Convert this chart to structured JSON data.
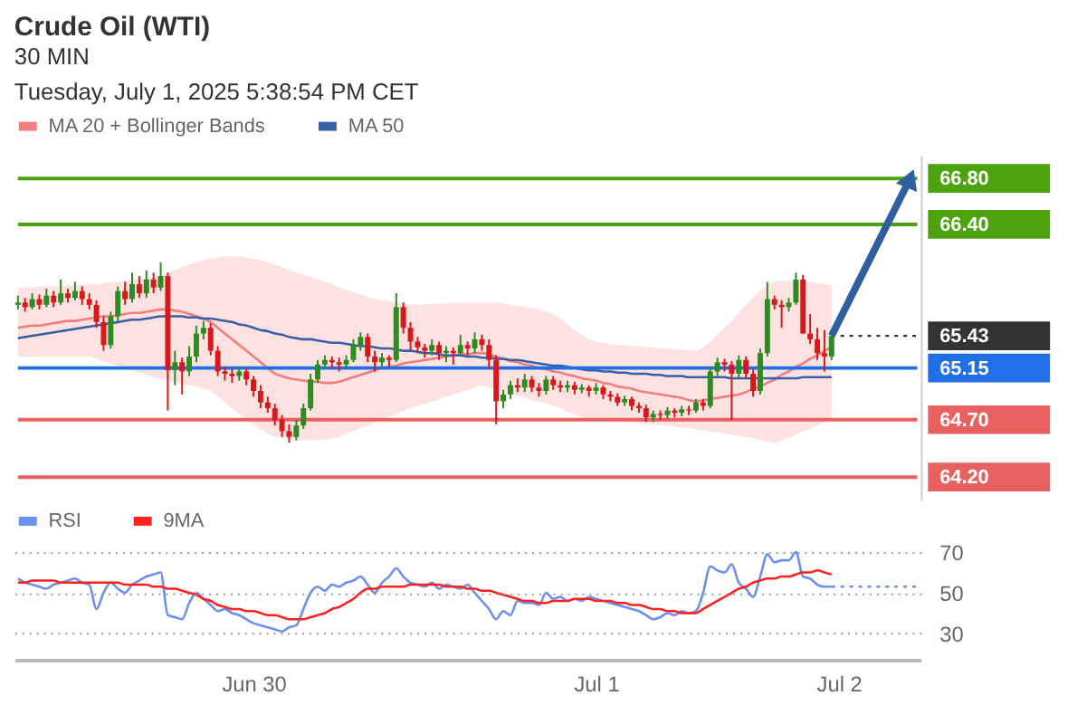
{
  "chart_data": [
    {
      "type": "candlestick",
      "title": "Crude Oil (WTI)",
      "subtitle": "30 MIN",
      "annotations": [
        "Tuesday, July 1, 2025 5:38:54 PM CET"
      ],
      "categories": [
        null,
        null,
        null,
        null,
        null,
        null,
        null,
        null,
        null,
        null,
        null,
        null,
        null,
        null,
        null,
        null,
        null,
        null,
        null,
        null,
        null,
        null,
        null,
        null,
        null,
        null,
        null,
        null,
        null,
        null,
        null,
        null,
        null,
        null,
        null,
        null,
        null,
        null,
        null,
        null,
        null,
        null,
        null,
        null,
        null,
        null,
        null,
        null,
        null,
        null,
        null,
        null,
        null,
        null,
        null,
        null,
        null,
        null,
        null,
        null,
        null,
        null,
        null,
        null,
        null,
        null,
        null,
        null,
        null,
        null,
        null,
        null,
        null,
        null,
        null,
        null,
        null,
        null,
        null,
        null,
        null,
        null,
        null,
        null,
        null,
        null,
        null,
        null,
        null,
        null,
        null,
        null,
        null,
        null,
        null,
        null,
        null,
        null,
        null,
        null,
        null,
        null,
        null,
        null,
        null,
        null,
        null,
        null,
        null,
        null,
        null,
        null,
        null,
        null,
        null,
        null,
        null,
        null,
        null,
        null,
        null,
        null,
        null,
        null,
        null,
        null,
        null
      ],
      "ohlc": [
        [
          65.7,
          65.78,
          65.66,
          65.72
        ],
        [
          65.72,
          65.76,
          65.64,
          65.68
        ],
        [
          65.68,
          65.8,
          65.66,
          65.75
        ],
        [
          65.75,
          65.79,
          65.66,
          65.7
        ],
        [
          65.7,
          65.84,
          65.68,
          65.78
        ],
        [
          65.78,
          65.82,
          65.68,
          65.72
        ],
        [
          65.72,
          65.92,
          65.7,
          65.8
        ],
        [
          65.8,
          65.84,
          65.72,
          65.76
        ],
        [
          65.76,
          65.9,
          65.74,
          65.82
        ],
        [
          65.82,
          65.86,
          65.7,
          65.75
        ],
        [
          65.75,
          65.8,
          65.66,
          65.7
        ],
        [
          65.7,
          65.74,
          65.5,
          65.55
        ],
        [
          65.55,
          65.6,
          65.3,
          65.35
        ],
        [
          65.35,
          65.64,
          65.32,
          65.6
        ],
        [
          65.6,
          65.86,
          65.56,
          65.82
        ],
        [
          65.82,
          65.9,
          65.7,
          65.75
        ],
        [
          65.75,
          65.98,
          65.72,
          65.88
        ],
        [
          65.88,
          65.95,
          65.76,
          65.8
        ],
        [
          65.8,
          66.0,
          65.76,
          65.92
        ],
        [
          65.92,
          65.98,
          65.8,
          65.85
        ],
        [
          65.85,
          66.07,
          65.82,
          65.95
        ],
        [
          65.95,
          65.98,
          64.78,
          65.13
        ],
        [
          65.13,
          65.3,
          65.0,
          65.2
        ],
        [
          65.2,
          65.24,
          64.92,
          65.12
        ],
        [
          65.12,
          65.34,
          65.08,
          65.25
        ],
        [
          65.25,
          65.52,
          65.2,
          65.45
        ],
        [
          65.45,
          65.56,
          65.4,
          65.5
        ],
        [
          65.5,
          65.54,
          65.26,
          65.3
        ],
        [
          65.3,
          65.34,
          65.08,
          65.12
        ],
        [
          65.12,
          65.16,
          65.04,
          65.1
        ],
        [
          65.1,
          65.14,
          65.02,
          65.08
        ],
        [
          65.08,
          65.16,
          65.04,
          65.12
        ],
        [
          65.12,
          65.15,
          65.0,
          65.05
        ],
        [
          65.05,
          65.08,
          64.9,
          64.95
        ],
        [
          64.95,
          65.0,
          64.8,
          64.85
        ],
        [
          64.85,
          64.9,
          64.76,
          64.8
        ],
        [
          64.8,
          64.84,
          64.65,
          64.7
        ],
        [
          64.7,
          64.74,
          64.55,
          64.6
        ],
        [
          64.6,
          64.66,
          64.5,
          64.55
        ],
        [
          64.55,
          64.7,
          64.52,
          64.65
        ],
        [
          64.65,
          64.84,
          64.62,
          64.8
        ],
        [
          64.8,
          65.1,
          64.78,
          65.05
        ],
        [
          65.05,
          65.22,
          65.02,
          65.18
        ],
        [
          65.18,
          65.26,
          65.14,
          65.22
        ],
        [
          65.22,
          65.25,
          65.15,
          65.2
        ],
        [
          65.2,
          65.24,
          65.12,
          65.18
        ],
        [
          65.18,
          65.26,
          65.14,
          65.22
        ],
        [
          65.22,
          65.4,
          65.2,
          65.35
        ],
        [
          65.35,
          65.46,
          65.3,
          65.42
        ],
        [
          65.42,
          65.45,
          65.2,
          65.25
        ],
        [
          65.25,
          65.3,
          65.12,
          65.2
        ],
        [
          65.2,
          65.28,
          65.16,
          65.24
        ],
        [
          65.24,
          65.26,
          65.16,
          65.22
        ],
        [
          65.22,
          65.8,
          65.2,
          65.68
        ],
        [
          65.68,
          65.72,
          65.45,
          65.5
        ],
        [
          65.5,
          65.55,
          65.3,
          65.38
        ],
        [
          65.38,
          65.42,
          65.28,
          65.33
        ],
        [
          65.33,
          65.36,
          65.24,
          65.3
        ],
        [
          65.3,
          65.4,
          65.26,
          65.35
        ],
        [
          65.35,
          65.38,
          65.22,
          65.28
        ],
        [
          65.28,
          65.34,
          65.2,
          65.3
        ],
        [
          65.3,
          65.33,
          65.18,
          65.28
        ],
        [
          65.28,
          65.44,
          65.26,
          65.35
        ],
        [
          65.35,
          65.38,
          65.26,
          65.32
        ],
        [
          65.32,
          65.46,
          65.28,
          65.4
        ],
        [
          65.4,
          65.44,
          65.3,
          65.35
        ],
        [
          65.35,
          65.4,
          65.14,
          65.22
        ],
        [
          65.22,
          65.26,
          64.66,
          64.86
        ],
        [
          64.86,
          64.96,
          64.8,
          64.92
        ],
        [
          64.92,
          65.04,
          64.88,
          65.0
        ],
        [
          65.0,
          65.06,
          64.94,
          64.98
        ],
        [
          64.98,
          65.1,
          64.94,
          65.05
        ],
        [
          65.05,
          65.08,
          64.94,
          64.98
        ],
        [
          64.98,
          65.02,
          64.9,
          64.95
        ],
        [
          64.95,
          65.08,
          64.92,
          65.05
        ],
        [
          65.05,
          65.08,
          64.96,
          65.0
        ],
        [
          65.0,
          65.04,
          64.94,
          64.98
        ],
        [
          64.98,
          65.04,
          64.94,
          65.0
        ],
        [
          65.0,
          65.03,
          64.92,
          64.96
        ],
        [
          64.96,
          65.01,
          64.93,
          64.98
        ],
        [
          64.98,
          65.0,
          64.9,
          64.95
        ],
        [
          64.95,
          65.02,
          64.92,
          64.98
        ],
        [
          64.98,
          65.0,
          64.88,
          64.92
        ],
        [
          64.92,
          64.95,
          64.86,
          64.9
        ],
        [
          64.9,
          64.93,
          64.82,
          64.85
        ],
        [
          64.85,
          64.91,
          64.82,
          64.88
        ],
        [
          64.88,
          64.9,
          64.78,
          64.82
        ],
        [
          64.82,
          64.85,
          64.76,
          64.8
        ],
        [
          64.8,
          64.83,
          64.68,
          64.72
        ],
        [
          64.72,
          64.78,
          64.68,
          64.75
        ],
        [
          64.75,
          64.78,
          64.7,
          64.74
        ],
        [
          64.74,
          64.81,
          64.71,
          64.78
        ],
        [
          64.78,
          64.8,
          64.72,
          64.76
        ],
        [
          64.76,
          64.82,
          64.73,
          64.79
        ],
        [
          64.79,
          64.82,
          64.74,
          64.78
        ],
        [
          64.78,
          64.88,
          64.76,
          64.85
        ],
        [
          64.85,
          64.88,
          64.78,
          64.82
        ],
        [
          64.82,
          65.16,
          64.8,
          65.12
        ],
        [
          65.12,
          65.24,
          65.08,
          65.2
        ],
        [
          65.2,
          65.23,
          65.12,
          65.18
        ],
        [
          65.18,
          65.21,
          64.7,
          65.1
        ],
        [
          65.1,
          65.26,
          65.06,
          65.22
        ],
        [
          65.22,
          65.25,
          65.06,
          65.1
        ],
        [
          65.1,
          65.14,
          64.9,
          64.95
        ],
        [
          64.95,
          65.32,
          64.92,
          65.28
        ],
        [
          65.28,
          65.9,
          65.25,
          65.75
        ],
        [
          65.75,
          65.78,
          65.66,
          65.7
        ],
        [
          65.7,
          65.74,
          65.5,
          65.68
        ],
        [
          65.68,
          65.76,
          65.64,
          65.72
        ],
        [
          65.72,
          65.98,
          65.7,
          65.92
        ],
        [
          65.92,
          65.96,
          65.45,
          65.45
        ],
        [
          65.45,
          65.62,
          65.36,
          65.4
        ],
        [
          65.4,
          65.5,
          65.22,
          65.28
        ],
        [
          65.28,
          65.48,
          65.12,
          65.25
        ],
        [
          65.25,
          65.46,
          65.22,
          65.43
        ],
        null,
        null,
        null,
        null,
        null,
        null,
        null,
        null,
        null,
        null,
        null,
        null
      ],
      "series": [
        {
          "name": "MA 20 + Bollinger Bands",
          "type": "line",
          "color": "#f47c7c",
          "values": [
            65.5,
            65.51,
            65.52,
            65.52,
            65.53,
            65.54,
            65.55,
            65.56,
            65.56,
            65.57,
            65.58,
            65.59,
            65.6,
            65.6,
            65.61,
            65.62,
            65.63,
            65.63,
            65.64,
            65.65,
            65.66,
            65.66,
            65.65,
            65.64,
            65.62,
            65.6,
            65.58,
            65.55,
            65.5,
            65.45,
            65.4,
            65.35,
            65.3,
            65.25,
            65.2,
            65.15,
            65.1,
            65.08,
            65.06,
            65.05,
            65.04,
            65.03,
            65.03,
            65.02,
            65.02,
            65.03,
            65.05,
            65.07,
            65.09,
            65.11,
            65.13,
            65.15,
            65.16,
            65.17,
            65.19,
            65.2,
            65.21,
            65.22,
            65.23,
            65.24,
            65.25,
            65.26,
            65.27,
            65.27,
            65.28,
            65.28,
            65.27,
            65.25,
            65.23,
            65.21,
            65.2,
            65.18,
            65.17,
            65.15,
            65.14,
            65.12,
            65.11,
            65.09,
            65.08,
            65.06,
            65.05,
            65.04,
            65.02,
            65.01,
            64.99,
            64.98,
            64.97,
            64.95,
            64.94,
            64.93,
            64.92,
            64.91,
            64.9,
            64.89,
            64.87,
            64.86,
            64.87,
            64.88,
            64.89,
            64.9,
            64.91,
            64.92,
            64.94,
            64.97,
            64.99,
            65.02,
            65.05,
            65.09,
            65.12,
            65.16,
            65.19,
            65.23,
            65.26,
            65.3,
            65.33,
            null,
            null,
            null,
            null,
            null,
            null,
            null,
            null,
            null,
            null,
            null,
            null
          ],
          "upper": [
            65.85,
            65.85,
            65.85,
            65.86,
            65.86,
            65.86,
            65.86,
            65.87,
            65.87,
            65.87,
            65.88,
            65.88,
            65.89,
            65.9,
            65.9,
            65.91,
            65.92,
            65.93,
            65.93,
            65.94,
            65.95,
            65.98,
            66.0,
            66.03,
            66.05,
            66.07,
            66.09,
            66.1,
            66.11,
            66.12,
            66.12,
            66.12,
            66.11,
            66.1,
            66.09,
            66.07,
            66.05,
            66.03,
            66.0,
            65.98,
            65.96,
            65.94,
            65.92,
            65.9,
            65.88,
            65.85,
            65.83,
            65.81,
            65.79,
            65.77,
            65.75,
            65.74,
            65.73,
            65.72,
            65.71,
            65.7,
            65.7,
            65.7,
            65.71,
            65.71,
            65.71,
            65.72,
            65.72,
            65.72,
            65.72,
            65.72,
            65.72,
            65.72,
            65.71,
            65.7,
            65.69,
            65.68,
            65.67,
            65.66,
            65.64,
            65.62,
            65.58,
            65.53,
            65.48,
            65.44,
            65.4,
            65.38,
            65.37,
            65.36,
            65.35,
            65.35,
            65.34,
            65.34,
            65.33,
            65.33,
            65.32,
            65.32,
            65.31,
            65.31,
            65.3,
            65.3,
            65.33,
            65.38,
            65.44,
            65.5,
            65.56,
            65.63,
            65.7,
            65.76,
            65.82,
            65.87,
            65.9,
            65.91,
            65.91,
            65.91,
            65.9,
            65.9,
            65.89,
            65.88,
            65.87,
            null,
            null,
            null,
            null,
            null,
            null,
            null,
            null,
            null,
            null,
            null,
            null
          ],
          "lower": [
            65.25,
            65.25,
            65.25,
            65.25,
            65.25,
            65.25,
            65.25,
            65.25,
            65.25,
            65.25,
            65.25,
            65.23,
            65.21,
            65.19,
            65.17,
            65.15,
            65.13,
            65.11,
            65.09,
            65.07,
            65.05,
            65.04,
            65.03,
            65.01,
            65.0,
            64.99,
            64.97,
            64.95,
            64.9,
            64.85,
            64.8,
            64.75,
            64.7,
            64.66,
            64.62,
            64.58,
            64.55,
            64.54,
            64.53,
            64.52,
            64.52,
            64.52,
            64.52,
            64.53,
            64.54,
            64.55,
            64.58,
            64.6,
            64.63,
            64.65,
            64.68,
            64.7,
            64.73,
            64.75,
            64.78,
            64.8,
            64.82,
            64.84,
            64.86,
            64.88,
            64.9,
            64.92,
            64.94,
            64.96,
            64.98,
            65.0,
            64.98,
            64.96,
            64.94,
            64.92,
            64.91,
            64.89,
            64.87,
            64.86,
            64.84,
            64.82,
            64.8,
            64.77,
            64.75,
            64.72,
            64.7,
            64.7,
            64.69,
            64.69,
            64.68,
            64.68,
            64.67,
            64.67,
            64.66,
            64.66,
            64.65,
            64.65,
            64.64,
            64.63,
            64.63,
            64.62,
            64.61,
            64.6,
            64.59,
            64.58,
            64.57,
            64.56,
            64.55,
            64.54,
            64.52,
            64.51,
            64.5,
            64.52,
            64.54,
            64.57,
            64.6,
            64.62,
            64.65,
            64.68,
            64.7,
            null,
            null,
            null,
            null,
            null,
            null,
            null,
            null,
            null,
            null,
            null,
            null
          ]
        },
        {
          "name": "MA 50",
          "type": "line",
          "color": "#3a5ea8",
          "values": [
            65.41,
            65.42,
            65.43,
            65.44,
            65.45,
            65.46,
            65.47,
            65.48,
            65.49,
            65.5,
            65.51,
            65.52,
            65.53,
            65.54,
            65.55,
            65.56,
            65.57,
            65.57,
            65.58,
            65.59,
            65.6,
            65.6,
            65.6,
            65.6,
            65.59,
            65.59,
            65.58,
            65.58,
            65.57,
            65.56,
            65.55,
            65.53,
            65.52,
            65.5,
            65.48,
            65.47,
            65.45,
            65.44,
            65.42,
            65.41,
            65.4,
            65.4,
            65.39,
            65.38,
            65.37,
            65.37,
            65.36,
            65.35,
            65.34,
            65.34,
            65.33,
            65.32,
            65.32,
            65.31,
            65.3,
            65.3,
            65.29,
            65.28,
            65.28,
            65.27,
            65.26,
            65.26,
            65.26,
            65.25,
            65.25,
            65.24,
            65.24,
            65.23,
            65.23,
            65.22,
            65.22,
            65.21,
            65.2,
            65.19,
            65.18,
            65.17,
            65.17,
            65.16,
            65.15,
            65.14,
            65.13,
            65.13,
            65.12,
            65.12,
            65.11,
            65.11,
            65.1,
            65.1,
            65.1,
            65.09,
            65.09,
            65.08,
            65.08,
            65.08,
            65.07,
            65.07,
            65.07,
            65.07,
            65.07,
            65.07,
            65.06,
            65.06,
            65.06,
            65.06,
            65.06,
            65.06,
            65.06,
            65.06,
            65.06,
            65.06,
            65.07,
            65.07,
            65.07,
            65.07,
            65.07,
            null,
            null,
            null,
            null,
            null,
            null,
            null,
            null,
            null,
            null,
            null,
            null
          ]
        }
      ],
      "ylim": [
        64.0,
        67.0
      ],
      "yticks": [
        {
          "value": 64.2,
          "label": "64.20"
        },
        {
          "value": 64.7,
          "label": "64.70"
        },
        {
          "value": 65.15,
          "label": "65.15"
        },
        {
          "value": 65.43,
          "label": "65.43"
        },
        {
          "value": 66.4,
          "label": "66.40"
        },
        {
          "value": 66.8,
          "label": "66.80"
        }
      ],
      "tick_labels": "y",
      "legend": "top left",
      "line_style": "solid",
      "marker": "none",
      "ref_lines": [
        {
          "axis": "y",
          "value": 66.8,
          "color": "#4ca30d",
          "line_style": "solid"
        },
        {
          "axis": "y",
          "value": 66.4,
          "color": "#4ca30d",
          "line_style": "solid"
        },
        {
          "axis": "y",
          "value": 65.43,
          "color": "#333333",
          "line_style": "dotted"
        },
        {
          "axis": "y",
          "value": 65.15,
          "color": "#1f6fe8",
          "line_style": "solid"
        },
        {
          "axis": "y",
          "value": 64.7,
          "color": "#e8605f",
          "line_style": "solid"
        },
        {
          "axis": "y",
          "value": 64.2,
          "color": "#e8605f",
          "line_style": "solid"
        }
      ]
    },
    {
      "type": "line",
      "categories": [
        null,
        null,
        null,
        null,
        null,
        null,
        null,
        null,
        null,
        null,
        null,
        null,
        null,
        null,
        null,
        null,
        null,
        null,
        null,
        null,
        null,
        null,
        null,
        null,
        null,
        null,
        null,
        null,
        null,
        null,
        null,
        null,
        null,
        "Jun 30",
        null,
        null,
        null,
        null,
        null,
        null,
        null,
        null,
        null,
        null,
        null,
        null,
        null,
        null,
        null,
        null,
        null,
        null,
        null,
        null,
        null,
        null,
        null,
        null,
        null,
        null,
        null,
        null,
        null,
        null,
        null,
        null,
        null,
        null,
        null,
        null,
        null,
        null,
        null,
        null,
        null,
        null,
        null,
        null,
        null,
        null,
        null,
        "Jul 1",
        null,
        null,
        null,
        null,
        null,
        null,
        null,
        null,
        null,
        null,
        null,
        null,
        null,
        null,
        null,
        null,
        null,
        null,
        null,
        null,
        null,
        null,
        null,
        null,
        null,
        null,
        null,
        null,
        null,
        null,
        null,
        null,
        null,
        "Jul 2",
        null,
        null,
        null,
        null,
        null,
        null,
        null,
        null,
        null,
        null,
        null
      ],
      "series": [
        {
          "name": "RSI",
          "color": "#6b8ff0",
          "values": [
            57,
            55,
            54,
            53,
            52,
            54,
            55,
            56,
            57,
            55,
            54,
            42,
            50,
            55,
            52,
            50,
            54,
            56,
            58,
            59,
            60,
            39,
            38,
            37,
            45,
            50,
            47,
            44,
            41,
            42,
            40,
            39,
            37,
            35,
            34,
            33,
            32,
            31,
            33,
            34,
            42,
            50,
            53,
            51,
            54,
            53,
            55,
            56,
            58,
            54,
            50,
            55,
            58,
            62,
            58,
            55,
            54,
            53,
            55,
            52,
            54,
            53,
            52,
            54,
            50,
            46,
            42,
            37,
            41,
            39,
            46,
            45,
            45,
            44,
            50,
            47,
            48,
            46,
            47,
            46,
            48,
            47,
            46,
            45,
            44,
            43,
            42,
            41,
            39,
            37,
            38,
            40,
            39,
            41,
            40,
            41,
            50,
            63,
            61,
            60,
            64,
            55,
            52,
            48,
            58,
            69,
            65,
            66,
            66,
            70,
            58,
            57,
            54,
            53,
            53,
            null,
            null,
            null,
            null,
            null,
            null,
            null,
            null,
            null,
            null,
            null,
            null
          ]
        },
        {
          "name": "9MA",
          "color": "#ff2020",
          "values": [
            55,
            55,
            56,
            56,
            56,
            56,
            55,
            55,
            55,
            55,
            55,
            55,
            55,
            55,
            55,
            54,
            54,
            54,
            54,
            53,
            53,
            52,
            52,
            51,
            50,
            49,
            47,
            46,
            44,
            43,
            42,
            42,
            41,
            41,
            40,
            39,
            39,
            38,
            37,
            37,
            37,
            38,
            39,
            40,
            42,
            43,
            45,
            47,
            50,
            52,
            52,
            53,
            53,
            53,
            53,
            54,
            54,
            54,
            54,
            54,
            53,
            53,
            53,
            52,
            52,
            51,
            51,
            50,
            49,
            48,
            47,
            46,
            46,
            45,
            45,
            46,
            46,
            46,
            47,
            47,
            47,
            46,
            46,
            46,
            45,
            45,
            44,
            44,
            43,
            42,
            42,
            41,
            41,
            40,
            40,
            40,
            42,
            44,
            46,
            48,
            50,
            52,
            53,
            55,
            56,
            57,
            57,
            58,
            58,
            59,
            60,
            60,
            61,
            60,
            59,
            null,
            null,
            null,
            null,
            null,
            null,
            null,
            null,
            null,
            null,
            null,
            null
          ]
        }
      ],
      "ylim": [
        17,
        70
      ],
      "yticks": [
        30,
        50,
        70
      ],
      "grid": "y",
      "legend": "top left",
      "line_style": "solid",
      "marker": "none",
      "ref_lines": [
        {
          "axis": "y",
          "value": 53,
          "color": "#6b8ff0",
          "line_style": "dotted"
        }
      ]
    }
  ]
}
